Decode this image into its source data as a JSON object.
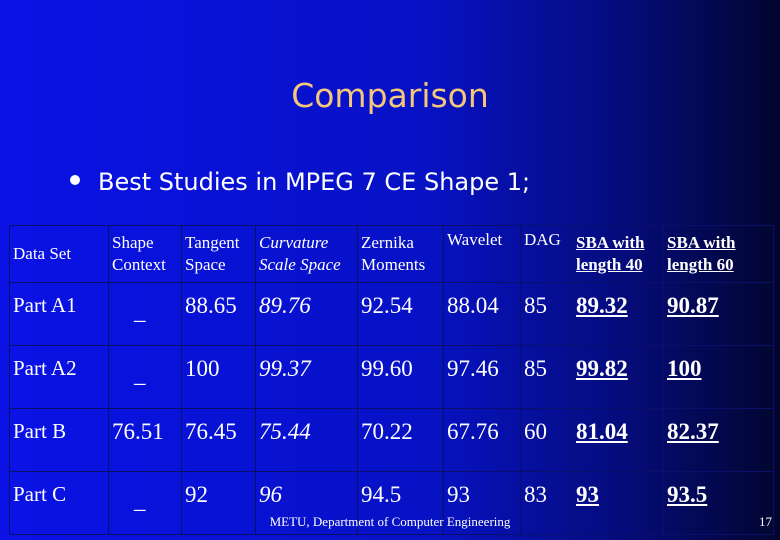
{
  "slide": {
    "title": "Comparison",
    "bullet": "Best Studies in MPEG 7 CE Shape 1;",
    "footer": "METU, Department of Computer Engineering",
    "page_number": "17"
  },
  "table": {
    "headers": [
      [
        "Data Set"
      ],
      [
        "Shape",
        "Context"
      ],
      [
        "Tangent",
        "Space"
      ],
      [
        "Curvature",
        "Scale Space"
      ],
      [
        "Zernika",
        "Moments"
      ],
      [
        "Wavelet"
      ],
      [
        "DAG"
      ],
      [
        "SBA with",
        "length 40"
      ],
      [
        "SBA with",
        "length 60"
      ]
    ],
    "rows": [
      [
        "Part A1",
        "_",
        "88.65",
        "89.76",
        "92.54",
        "88.04",
        "85",
        "89.32",
        "90.87"
      ],
      [
        "Part A2",
        "_",
        "100",
        "99.37",
        "99.60",
        "97.46",
        "85",
        "99.82",
        "100"
      ],
      [
        "Part B",
        "76.51",
        "76.45",
        "75.44",
        "70.22",
        "67.76",
        "60",
        "81.04",
        "82.37"
      ],
      [
        "Part C",
        "_",
        "92",
        "96",
        "94.5",
        "93",
        "83",
        "93",
        "93.5"
      ]
    ]
  },
  "colors": {
    "title": "#f6c67a",
    "text": "#ffffff",
    "background_start": "#0a12e6",
    "background_end": "#02052e"
  }
}
